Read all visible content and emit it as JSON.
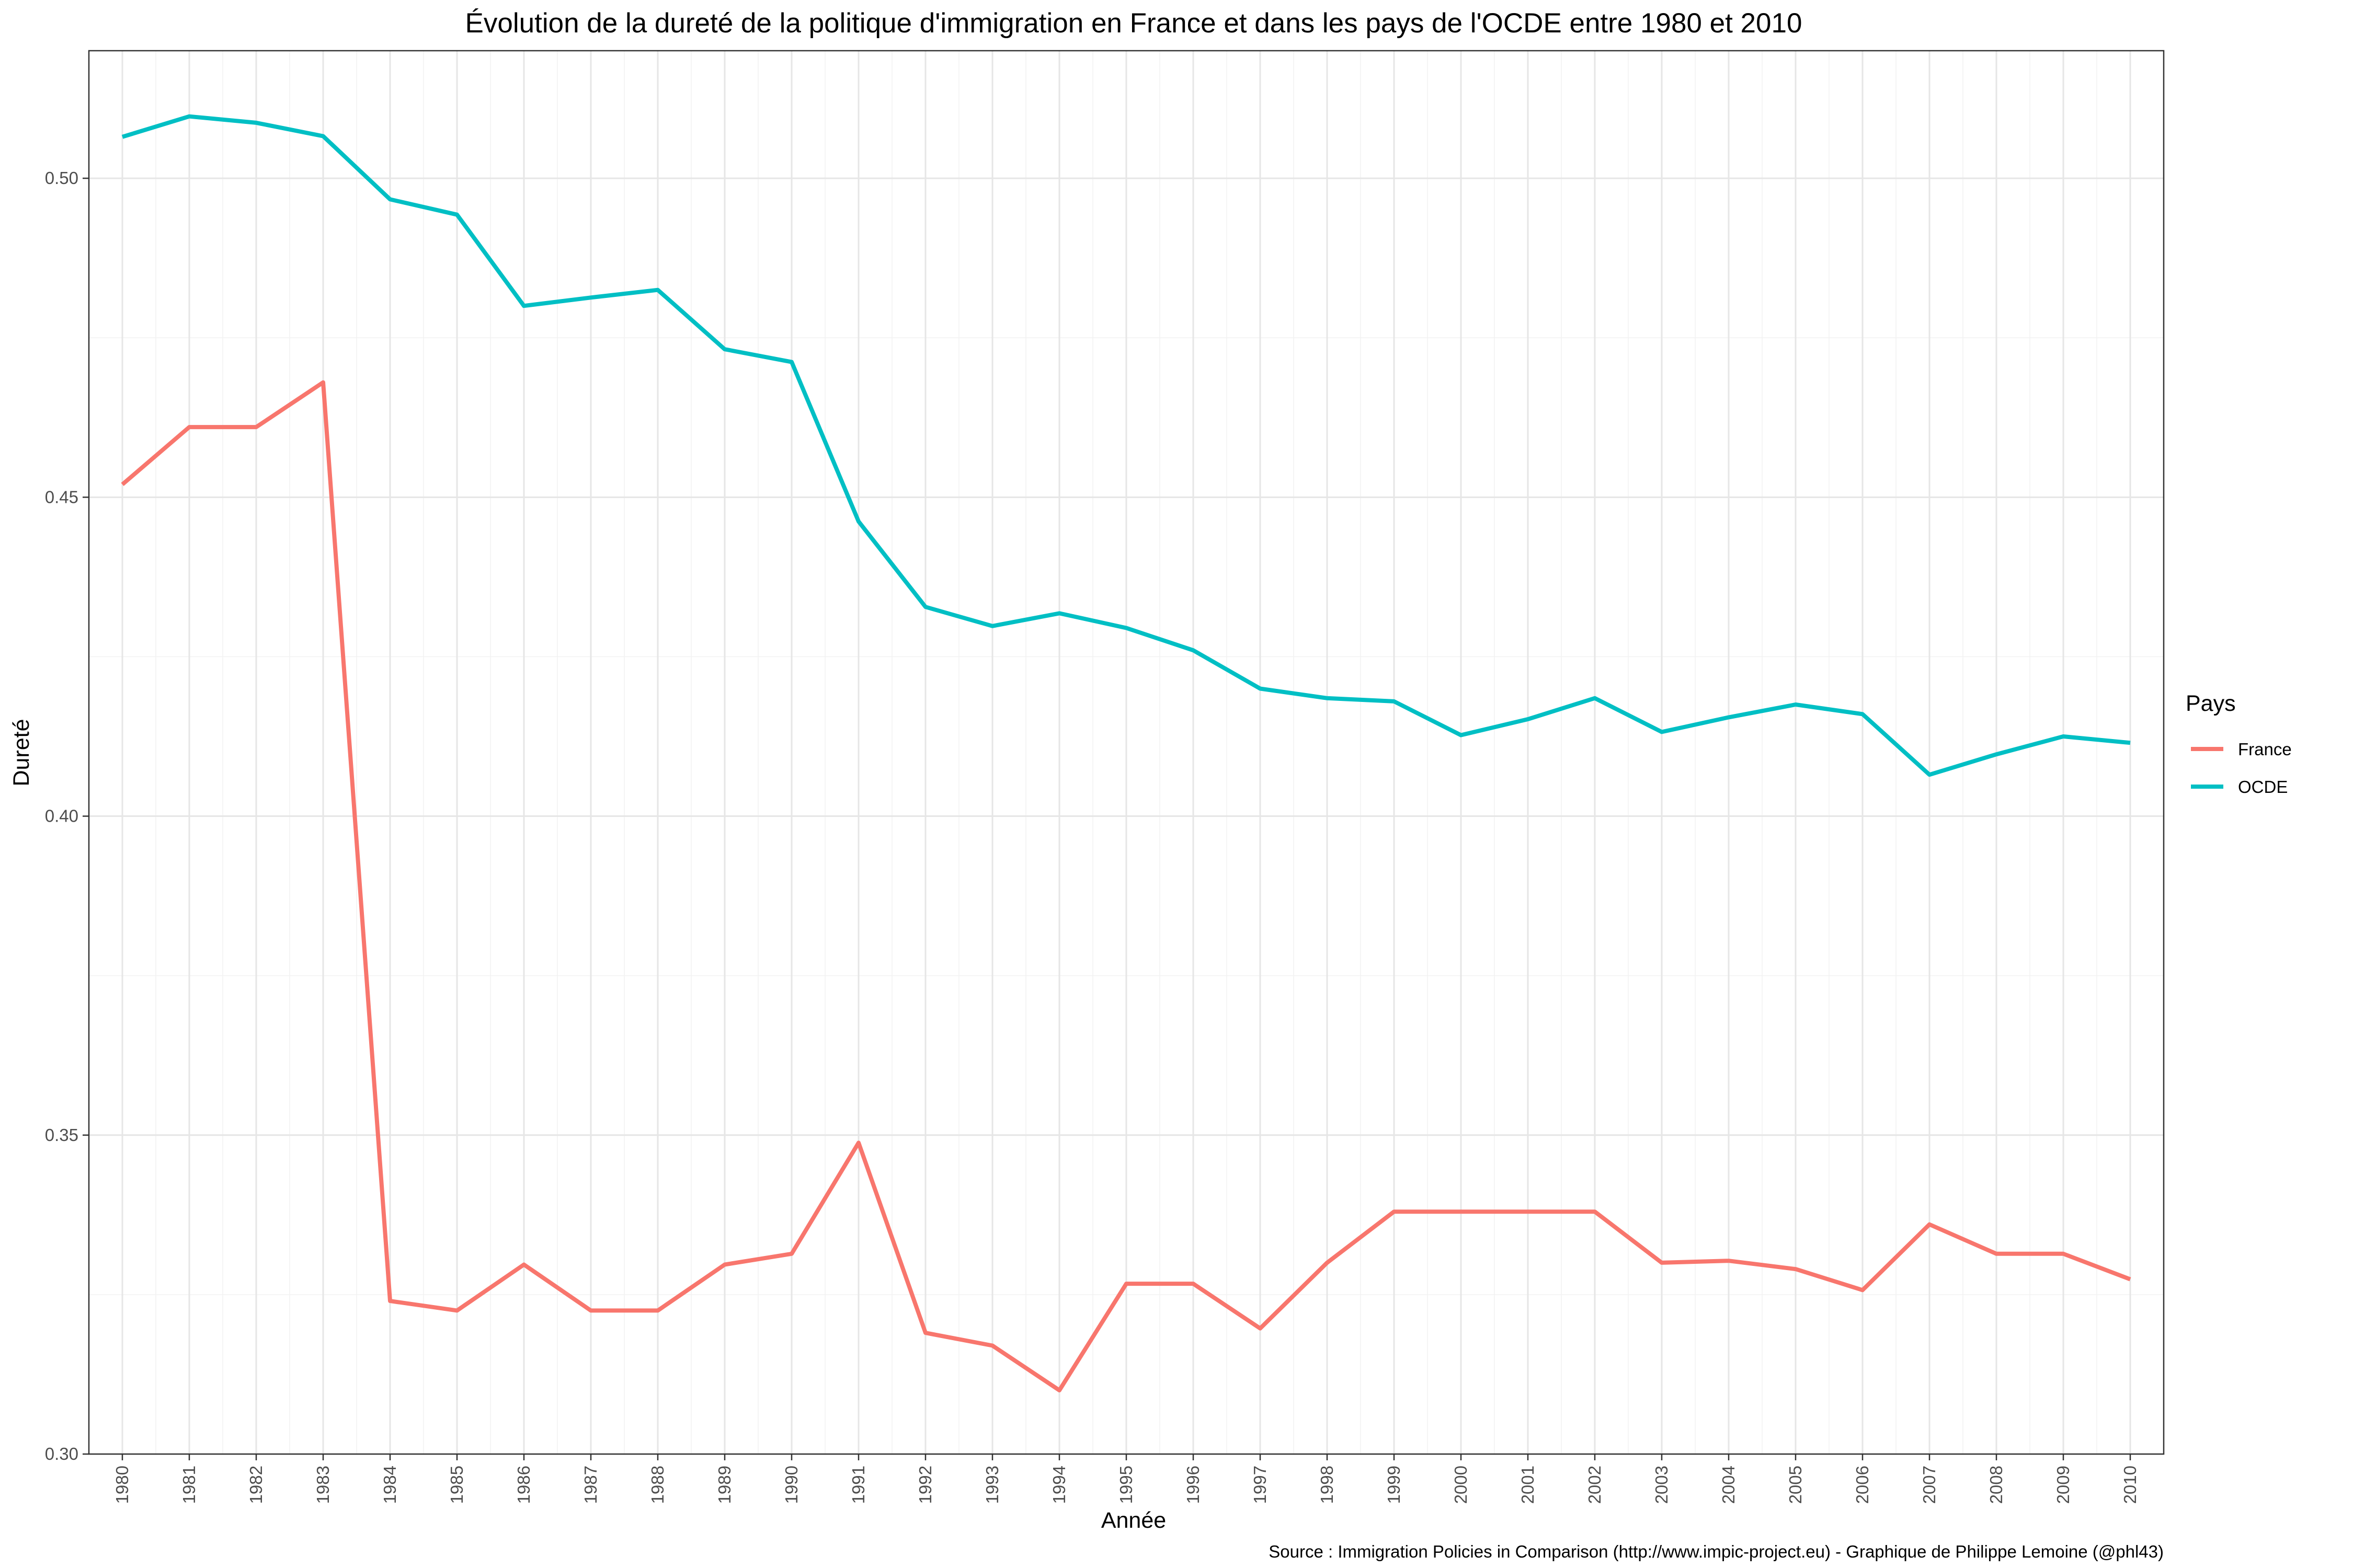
{
  "chart_data": {
    "type": "line",
    "title": "Évolution de la dureté de la politique d'immigration en France et dans les pays de l'OCDE entre 1980 et 2010",
    "xlabel": "Année",
    "ylabel": "Dureté",
    "caption": "Source : Immigration Policies in Comparison (http://www.impic-project.eu) - Graphique de Philippe Lemoine (@phl43)",
    "ylim": [
      0.3,
      0.52
    ],
    "xlim": [
      1979.5,
      2010.5
    ],
    "y_ticks": [
      0.3,
      0.35,
      0.4,
      0.45,
      0.5
    ],
    "y_tick_labels": [
      "0.30",
      "0.35",
      "0.40",
      "0.45",
      "0.50"
    ],
    "x": [
      1980,
      1981,
      1982,
      1983,
      1984,
      1985,
      1986,
      1987,
      1988,
      1989,
      1990,
      1991,
      1992,
      1993,
      1994,
      1995,
      1996,
      1997,
      1998,
      1999,
      2000,
      2001,
      2002,
      2003,
      2004,
      2005,
      2006,
      2007,
      2008,
      2009,
      2010
    ],
    "x_tick_labels": [
      "1980",
      "1981",
      "1982",
      "1983",
      "1984",
      "1985",
      "1986",
      "1987",
      "1988",
      "1989",
      "1990",
      "1991",
      "1992",
      "1993",
      "1994",
      "1995",
      "1996",
      "1997",
      "1998",
      "1999",
      "2000",
      "2001",
      "2002",
      "2003",
      "2004",
      "2005",
      "2006",
      "2007",
      "2008",
      "2009",
      "2010"
    ],
    "grid": true,
    "legend": {
      "title": "Pays",
      "position": "right"
    },
    "series": [
      {
        "name": "France",
        "color": "#f8766d",
        "values": [
          0.452,
          0.461,
          0.461,
          0.468,
          0.324,
          0.3225,
          0.3297,
          0.3225,
          0.3225,
          0.3297,
          0.3314,
          0.3488,
          0.319,
          0.317,
          0.31,
          0.3267,
          0.3267,
          0.3197,
          0.33,
          0.338,
          0.338,
          0.338,
          0.338,
          0.33,
          0.3303,
          0.329,
          0.3257,
          0.336,
          0.3314,
          0.3314,
          0.3274
        ]
      },
      {
        "name": "OCDE",
        "color": "#00bfc4",
        "values": [
          0.5065,
          0.5097,
          0.5087,
          0.5066,
          0.4967,
          0.4943,
          0.48,
          0.4813,
          0.4825,
          0.4732,
          0.4712,
          0.4462,
          0.4328,
          0.4298,
          0.4318,
          0.4295,
          0.426,
          0.42,
          0.4185,
          0.418,
          0.4127,
          0.4152,
          0.4185,
          0.4132,
          0.4155,
          0.4175,
          0.416,
          0.4065,
          0.4097,
          0.4125,
          0.4115
        ]
      }
    ]
  }
}
